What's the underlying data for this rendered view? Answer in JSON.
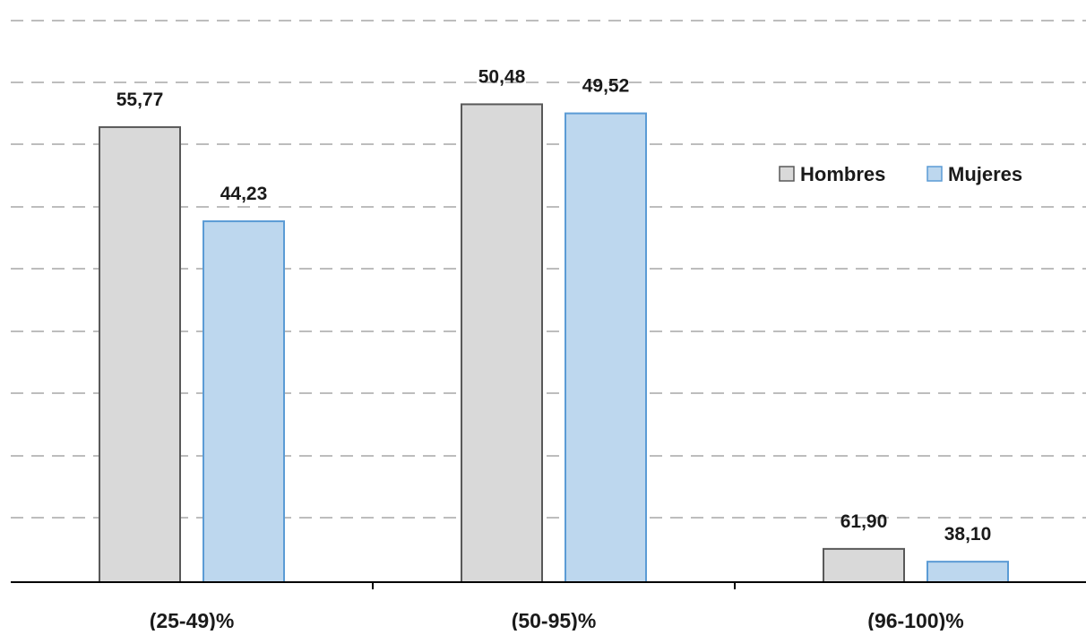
{
  "chart_data": {
    "type": "bar",
    "categories": [
      "(25-49)%",
      "(50-95)%",
      "(96-100)%"
    ],
    "series": [
      {
        "name": "Hombres",
        "values": [
          55.77,
          50.48,
          61.9
        ],
        "labels": [
          "55,77",
          "50,48",
          "61,90"
        ],
        "color": "#d9d9d9",
        "stroke": "#595959"
      },
      {
        "name": "Mujeres",
        "values": [
          44.23,
          49.52,
          38.1
        ],
        "labels": [
          "44,23",
          "49,52",
          "38,10"
        ],
        "color": "#bdd7ee",
        "stroke": "#5b9bd5"
      }
    ],
    "gridlines": true,
    "legend_position": "right",
    "axis_visible": false
  }
}
